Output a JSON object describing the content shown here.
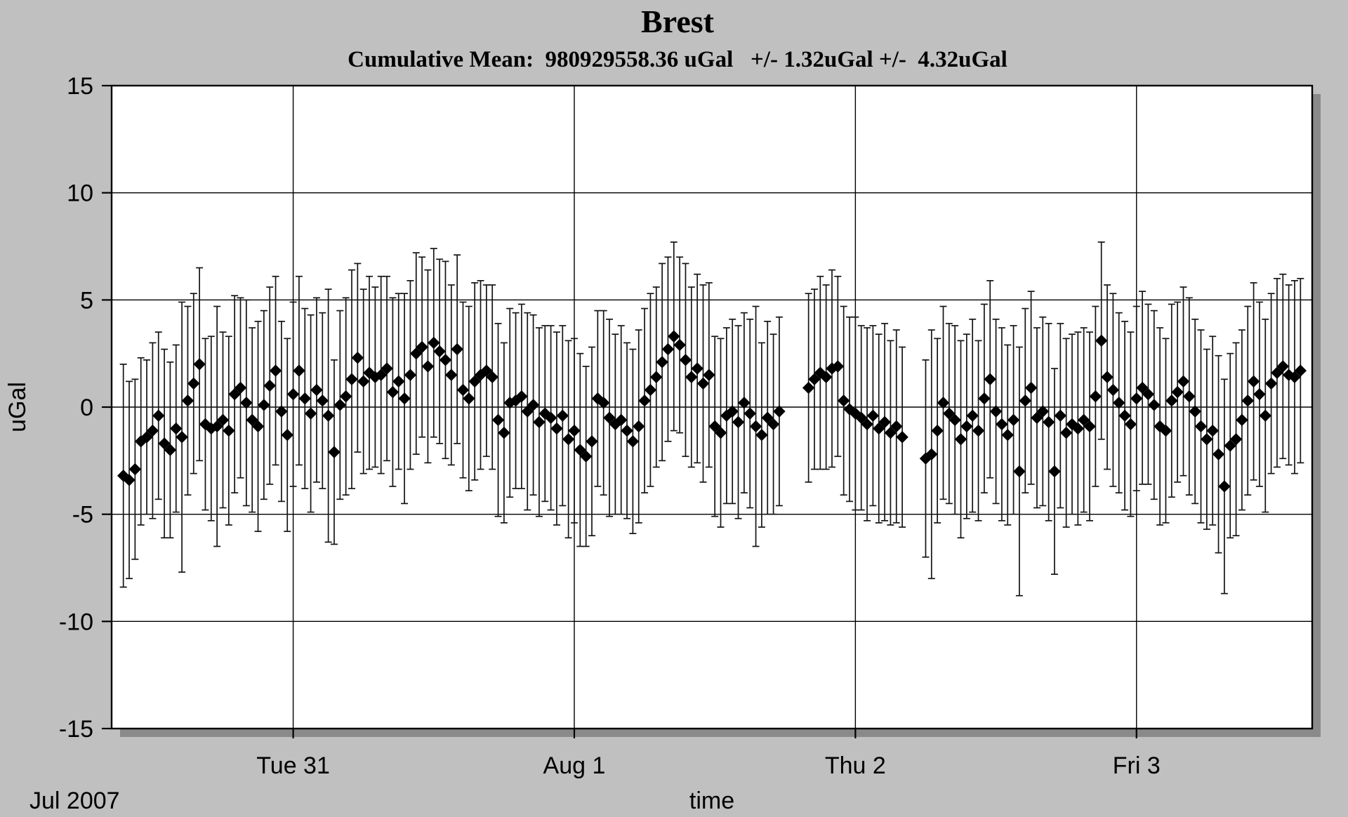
{
  "colors": {
    "background": "#c0c0c0",
    "plot_bg": "#ffffff",
    "shadow": "#8a8a8a",
    "foreground": "#000000"
  },
  "chart_data": {
    "type": "scatter",
    "title": "Brest",
    "subtitle": "Cumulative Mean:  980929558.36 uGal   +/- 1.32uGal +/-  4.32uGal",
    "xlabel": "time",
    "ylabel": "uGal",
    "x_start_label": "Jul 2007",
    "marker": "filled-diamond",
    "error_bars": true,
    "error_bar_caps": true,
    "grid": true,
    "legend": "none",
    "ylim": [
      -15,
      15
    ],
    "yticks": [
      15,
      10,
      5,
      0,
      -5,
      -10,
      -15
    ],
    "x_unit": "hours-from-first-sample",
    "xlim": [
      -1,
      101.5
    ],
    "x_gridlines": [
      {
        "x": 14.5,
        "label": "Tue 31"
      },
      {
        "x": 38.5,
        "label": "Aug 1"
      },
      {
        "x": 62.5,
        "label": "Thu 2"
      },
      {
        "x": 86.5,
        "label": "Fri 3"
      }
    ],
    "points": [
      [
        0,
        -3.2,
        5.2
      ],
      [
        0.5,
        -3.4,
        4.6
      ],
      [
        1,
        -2.9,
        4.2
      ],
      [
        1.5,
        -1.6,
        3.9
      ],
      [
        2,
        -1.4,
        3.6
      ],
      [
        2.5,
        -1.1,
        4.1
      ],
      [
        3,
        -0.4,
        3.9
      ],
      [
        3.5,
        -1.7,
        4.4
      ],
      [
        4,
        -2.0,
        4.1
      ],
      [
        4.5,
        -1.0,
        3.9
      ],
      [
        5,
        -1.4,
        6.3
      ],
      [
        5.5,
        0.3,
        4.4
      ],
      [
        6,
        1.1,
        4.2
      ],
      [
        6.5,
        2.0,
        4.5
      ],
      [
        7,
        -0.8,
        4.0
      ],
      [
        7.5,
        -1.0,
        4.3
      ],
      [
        8,
        -0.9,
        5.6
      ],
      [
        8.5,
        -0.6,
        4.1
      ],
      [
        9,
        -1.1,
        4.4
      ],
      [
        9.5,
        0.6,
        4.6
      ],
      [
        10,
        0.9,
        4.2
      ],
      [
        10.5,
        0.2,
        4.8
      ],
      [
        11,
        -0.6,
        4.3
      ],
      [
        11.5,
        -0.9,
        4.9
      ],
      [
        12,
        0.1,
        4.4
      ],
      [
        12.5,
        1.0,
        4.6
      ],
      [
        13,
        1.7,
        4.4
      ],
      [
        13.5,
        -0.2,
        4.2
      ],
      [
        14,
        -1.3,
        4.5
      ],
      [
        14.5,
        0.6,
        4.3
      ],
      [
        15,
        1.7,
        4.4
      ],
      [
        15.5,
        0.4,
        4.2
      ],
      [
        16,
        -0.3,
        4.6
      ],
      [
        16.5,
        0.8,
        4.3
      ],
      [
        17,
        0.3,
        4.1
      ],
      [
        17.5,
        -0.4,
        5.9
      ],
      [
        18,
        -2.1,
        4.3
      ],
      [
        18.5,
        0.1,
        4.4
      ],
      [
        19,
        0.5,
        4.6
      ],
      [
        19.5,
        1.3,
        5.1
      ],
      [
        20,
        2.3,
        4.4
      ],
      [
        20.5,
        1.2,
        4.3
      ],
      [
        21,
        1.6,
        4.5
      ],
      [
        21.5,
        1.4,
        4.2
      ],
      [
        22,
        1.5,
        4.6
      ],
      [
        22.5,
        1.8,
        4.3
      ],
      [
        23,
        0.7,
        4.4
      ],
      [
        23.5,
        1.2,
        4.1
      ],
      [
        24,
        0.4,
        4.9
      ],
      [
        24.5,
        1.5,
        4.4
      ],
      [
        25,
        2.5,
        4.7
      ],
      [
        25.5,
        2.8,
        4.2
      ],
      [
        26,
        1.9,
        4.5
      ],
      [
        26.5,
        3.0,
        4.4
      ],
      [
        27,
        2.6,
        4.3
      ],
      [
        27.5,
        2.2,
        4.6
      ],
      [
        28,
        1.5,
        4.2
      ],
      [
        28.5,
        2.7,
        4.4
      ],
      [
        29,
        0.8,
        4.1
      ],
      [
        29.5,
        0.4,
        4.3
      ],
      [
        30,
        1.2,
        4.6
      ],
      [
        30.5,
        1.5,
        4.4
      ],
      [
        31,
        1.7,
        4.0
      ],
      [
        31.5,
        1.4,
        4.3
      ],
      [
        32,
        -0.6,
        4.5
      ],
      [
        32.5,
        -1.2,
        4.2
      ],
      [
        33,
        0.2,
        4.4
      ],
      [
        33.5,
        0.3,
        4.1
      ],
      [
        34,
        0.5,
        4.3
      ],
      [
        34.5,
        -0.2,
        4.6
      ],
      [
        35,
        0.1,
        4.2
      ],
      [
        35.5,
        -0.7,
        4.4
      ],
      [
        36,
        -0.3,
        4.1
      ],
      [
        36.5,
        -0.5,
        4.3
      ],
      [
        37,
        -1.0,
        4.5
      ],
      [
        37.5,
        -0.4,
        4.2
      ],
      [
        38,
        -1.5,
        4.6
      ],
      [
        38.5,
        -1.1,
        4.3
      ],
      [
        39,
        -2.0,
        4.5
      ],
      [
        39.5,
        -2.3,
        4.2
      ],
      [
        40,
        -1.6,
        4.4
      ],
      [
        40.5,
        0.4,
        4.1
      ],
      [
        41,
        0.2,
        4.3
      ],
      [
        41.5,
        -0.5,
        4.6
      ],
      [
        42,
        -0.8,
        4.2
      ],
      [
        42.5,
        -0.6,
        4.4
      ],
      [
        43,
        -1.1,
        4.1
      ],
      [
        43.5,
        -1.6,
        4.3
      ],
      [
        44,
        -0.9,
        4.5
      ],
      [
        44.5,
        0.3,
        4.3
      ],
      [
        45,
        0.8,
        4.5
      ],
      [
        45.5,
        1.4,
        4.2
      ],
      [
        46,
        2.1,
        4.6
      ],
      [
        46.5,
        2.7,
        4.3
      ],
      [
        47,
        3.3,
        4.4
      ],
      [
        47.5,
        2.9,
        4.1
      ],
      [
        48,
        2.2,
        4.5
      ],
      [
        48.5,
        1.4,
        4.2
      ],
      [
        49,
        1.8,
        4.4
      ],
      [
        49.5,
        1.1,
        4.6
      ],
      [
        50,
        1.5,
        4.3
      ],
      [
        50.5,
        -0.9,
        4.2
      ],
      [
        51,
        -1.2,
        4.4
      ],
      [
        51.5,
        -0.4,
        4.1
      ],
      [
        52,
        -0.2,
        4.3
      ],
      [
        52.5,
        -0.7,
        4.5
      ],
      [
        53,
        0.2,
        4.2
      ],
      [
        53.5,
        -0.3,
        4.4
      ],
      [
        54,
        -0.9,
        5.6
      ],
      [
        54.5,
        -1.3,
        4.3
      ],
      [
        55,
        -0.5,
        4.5
      ],
      [
        55.5,
        -0.8,
        4.2
      ],
      [
        56,
        -0.2,
        4.4
      ],
      [
        58.5,
        0.9,
        4.4
      ],
      [
        59,
        1.3,
        4.2
      ],
      [
        59.5,
        1.6,
        4.5
      ],
      [
        60,
        1.4,
        4.3
      ],
      [
        60.5,
        1.8,
        4.6
      ],
      [
        61,
        1.9,
        4.2
      ],
      [
        61.5,
        0.3,
        4.4
      ],
      [
        62,
        -0.1,
        4.3
      ],
      [
        62.5,
        -0.3,
        4.5
      ],
      [
        63,
        -0.5,
        4.3
      ],
      [
        63.5,
        -0.8,
        4.5
      ],
      [
        64,
        -0.4,
        4.2
      ],
      [
        64.5,
        -1.0,
        4.4
      ],
      [
        65,
        -0.7,
        4.6
      ],
      [
        65.5,
        -1.2,
        4.3
      ],
      [
        66,
        -0.9,
        4.5
      ],
      [
        66.5,
        -1.4,
        4.2
      ],
      [
        68.5,
        -2.4,
        4.6
      ],
      [
        69,
        -2.2,
        5.8
      ],
      [
        69.5,
        -1.1,
        4.3
      ],
      [
        70,
        0.2,
        4.5
      ],
      [
        70.5,
        -0.3,
        4.2
      ],
      [
        71,
        -0.6,
        4.4
      ],
      [
        71.5,
        -1.5,
        4.6
      ],
      [
        72,
        -0.9,
        4.3
      ],
      [
        72.5,
        -0.4,
        4.5
      ],
      [
        73,
        -1.1,
        4.2
      ],
      [
        73.5,
        0.4,
        4.4
      ],
      [
        74,
        1.3,
        4.6
      ],
      [
        74.5,
        -0.2,
        4.3
      ],
      [
        75,
        -0.8,
        4.5
      ],
      [
        75.5,
        -1.3,
        4.2
      ],
      [
        76,
        -0.6,
        4.4
      ],
      [
        76.5,
        -3.0,
        5.8
      ],
      [
        77,
        0.3,
        4.3
      ],
      [
        77.5,
        0.9,
        4.5
      ],
      [
        78,
        -0.5,
        4.2
      ],
      [
        78.5,
        -0.2,
        4.4
      ],
      [
        79,
        -0.7,
        4.6
      ],
      [
        79.5,
        -3.0,
        4.8
      ],
      [
        80,
        -0.4,
        4.3
      ],
      [
        80.5,
        -1.2,
        4.4
      ],
      [
        81,
        -0.8,
        4.2
      ],
      [
        81.5,
        -1.0,
        4.5
      ],
      [
        82,
        -0.6,
        4.3
      ],
      [
        82.5,
        -0.9,
        4.4
      ],
      [
        83,
        0.5,
        4.2
      ],
      [
        83.5,
        3.1,
        4.6
      ],
      [
        84,
        1.4,
        4.3
      ],
      [
        84.5,
        0.8,
        4.5
      ],
      [
        85,
        0.2,
        4.2
      ],
      [
        85.5,
        -0.4,
        4.4
      ],
      [
        86,
        -0.8,
        4.3
      ],
      [
        86.5,
        0.4,
        4.3
      ],
      [
        87,
        0.9,
        4.5
      ],
      [
        87.5,
        0.6,
        4.2
      ],
      [
        88,
        0.1,
        4.4
      ],
      [
        88.5,
        -0.9,
        4.6
      ],
      [
        89,
        -1.1,
        4.3
      ],
      [
        89.5,
        0.3,
        4.5
      ],
      [
        90,
        0.7,
        4.2
      ],
      [
        90.5,
        1.2,
        4.4
      ],
      [
        91,
        0.5,
        4.6
      ],
      [
        91.5,
        -0.2,
        4.3
      ],
      [
        92,
        -0.9,
        4.5
      ],
      [
        92.5,
        -1.5,
        4.2
      ],
      [
        93,
        -1.1,
        4.4
      ],
      [
        93.5,
        -2.2,
        4.6
      ],
      [
        94,
        -3.7,
        5.0
      ],
      [
        94.5,
        -1.8,
        4.3
      ],
      [
        95,
        -1.5,
        4.5
      ],
      [
        95.5,
        -0.6,
        4.2
      ],
      [
        96,
        0.3,
        4.4
      ],
      [
        96.5,
        1.2,
        4.6
      ],
      [
        97,
        0.6,
        4.3
      ],
      [
        97.5,
        -0.4,
        4.5
      ],
      [
        98,
        1.1,
        4.2
      ],
      [
        98.5,
        1.6,
        4.4
      ],
      [
        99,
        1.9,
        4.3
      ],
      [
        99.5,
        1.5,
        4.2
      ],
      [
        100,
        1.4,
        4.5
      ],
      [
        100.5,
        1.7,
        4.3
      ]
    ]
  }
}
